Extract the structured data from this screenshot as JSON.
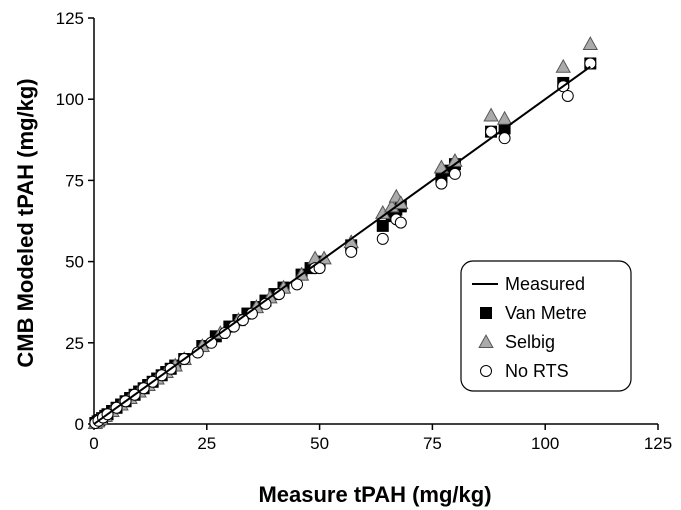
{
  "chart_data": {
    "type": "scatter",
    "title": "",
    "xlabel": "Measure tPAH  (mg/kg)",
    "ylabel": "CMB Modeled tPAH  (mg/kg)",
    "xlim": [
      0,
      125
    ],
    "ylim": [
      0,
      125
    ],
    "xticks": [
      "0",
      "25",
      "50",
      "75",
      "100",
      "125"
    ],
    "yticks": [
      "0",
      "25",
      "50",
      "75",
      "100",
      "125"
    ],
    "grid": false,
    "legend_position": "bottom-right",
    "series": [
      {
        "name": "Measured",
        "kind": "line",
        "color": "#000000",
        "x": [
          0,
          110
        ],
        "y": [
          0,
          110
        ]
      },
      {
        "name": "Van Metre",
        "kind": "marker",
        "marker": "square",
        "color": "#000000",
        "x": [
          0.3,
          0.8,
          1.2,
          1.8,
          2.5,
          3,
          4,
          5,
          6,
          7,
          8,
          9,
          10,
          11,
          12,
          13,
          14,
          15,
          16,
          17,
          18,
          20,
          24,
          27,
          30,
          32,
          34,
          36,
          38,
          40,
          42,
          46,
          48,
          50,
          57,
          64,
          66,
          67,
          68,
          77,
          78,
          80,
          88,
          91,
          104,
          110
        ],
        "y": [
          0.3,
          0.8,
          1.2,
          1.8,
          2.5,
          3,
          4,
          5,
          6,
          7,
          8,
          9,
          10,
          11,
          12,
          13,
          14,
          15,
          16,
          17,
          18,
          20,
          24,
          27,
          30,
          32,
          34,
          36,
          38,
          40,
          42,
          46,
          48,
          50,
          55,
          61,
          64,
          66,
          67,
          76,
          78,
          80,
          90,
          91,
          105,
          111
        ]
      },
      {
        "name": "Selbig",
        "kind": "marker",
        "marker": "triangle",
        "color": "#aaaaaa",
        "x": [
          0.3,
          0.8,
          1.5,
          2.5,
          4,
          6,
          8,
          10,
          12,
          14,
          16,
          18,
          20,
          24,
          28,
          32,
          36,
          39,
          42,
          46,
          49,
          51,
          57,
          64,
          66,
          67,
          68,
          77,
          80,
          88,
          91,
          104,
          110
        ],
        "y": [
          0.3,
          0.8,
          1.5,
          2.5,
          4,
          6,
          8,
          10,
          12,
          14,
          16,
          18,
          20,
          24,
          28,
          32,
          36,
          39,
          42,
          46,
          51,
          51,
          56,
          65,
          67,
          70,
          68,
          79,
          81,
          95,
          94,
          110,
          117
        ]
      },
      {
        "name": "No RTS",
        "kind": "marker",
        "marker": "circle",
        "color": "#ffffff",
        "x": [
          0.3,
          1,
          2,
          3,
          5,
          7,
          9,
          11,
          13,
          15,
          17,
          20,
          23,
          26,
          29,
          31,
          33,
          35,
          38,
          41,
          45,
          49,
          50,
          57,
          64,
          67,
          68,
          77,
          80,
          88,
          91,
          104,
          105,
          110
        ],
        "y": [
          0.3,
          1,
          2,
          3,
          5,
          7,
          9,
          11,
          13,
          15,
          17,
          20,
          22,
          25,
          28,
          30,
          32,
          34,
          37,
          40,
          43,
          48,
          48,
          53,
          57,
          63,
          62,
          74,
          77,
          90,
          88,
          104,
          101,
          111
        ]
      }
    ]
  }
}
